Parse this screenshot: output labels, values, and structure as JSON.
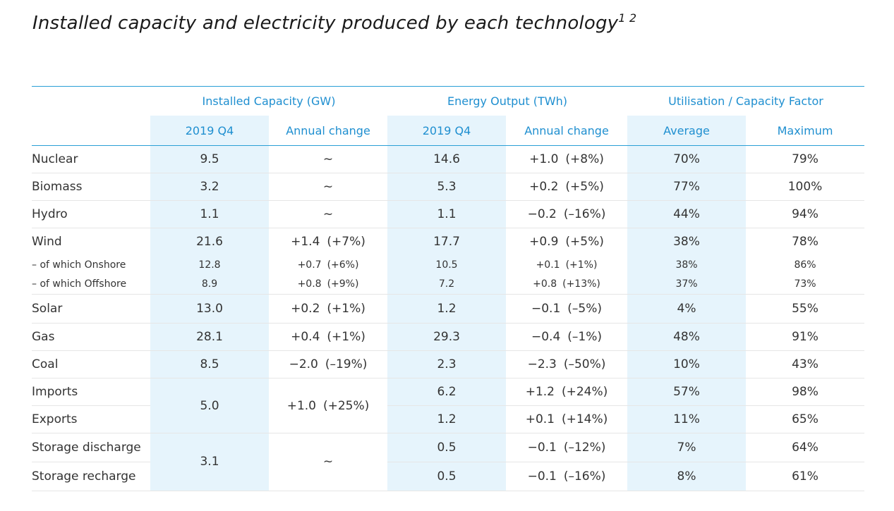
{
  "title": {
    "text": "Installed capacity and electricity produced by each technology",
    "footnotes": "1 2"
  },
  "chart_data": {
    "type": "table",
    "groups": [
      {
        "label": "Installed Capacity (GW)",
        "columns": [
          "2019 Q4",
          "Annual change"
        ]
      },
      {
        "label": "Energy Output (TWh)",
        "columns": [
          "2019 Q4",
          "Annual change"
        ]
      },
      {
        "label": "Utilisation / Capacity Factor",
        "columns": [
          "Average",
          "Maximum"
        ]
      }
    ],
    "rows": [
      {
        "name": "Nuclear",
        "cap": "9.5",
        "cap_chg": "~",
        "cap_chg_pct": "",
        "out": "14.6",
        "out_chg": "+1.0",
        "out_chg_pct": "(+8%)",
        "avg": "70%",
        "max": "79%"
      },
      {
        "name": "Biomass",
        "cap": "3.2",
        "cap_chg": "~",
        "cap_chg_pct": "",
        "out": "5.3",
        "out_chg": "+0.2",
        "out_chg_pct": "(+5%)",
        "avg": "77%",
        "max": "100%"
      },
      {
        "name": "Hydro",
        "cap": "1.1",
        "cap_chg": "~",
        "cap_chg_pct": "",
        "out": "1.1",
        "out_chg": "−0.2",
        "out_chg_pct": "(–16%)",
        "avg": "44%",
        "max": "94%"
      },
      {
        "name": "Wind",
        "cap": "21.6",
        "cap_chg": "+1.4",
        "cap_chg_pct": "(+7%)",
        "out": "17.7",
        "out_chg": "+0.9",
        "out_chg_pct": "(+5%)",
        "avg": "38%",
        "max": "78%"
      },
      {
        "name": "– of which Onshore",
        "cap": "12.8",
        "cap_chg": "+0.7",
        "cap_chg_pct": "(+6%)",
        "out": "10.5",
        "out_chg": "+0.1",
        "out_chg_pct": "(+1%)",
        "avg": "38%",
        "max": "86%"
      },
      {
        "name": "– of which Offshore",
        "cap": "8.9",
        "cap_chg": "+0.8",
        "cap_chg_pct": "(+9%)",
        "out": "7.2",
        "out_chg": "+0.8",
        "out_chg_pct": "(+13%)",
        "avg": "37%",
        "max": "73%"
      },
      {
        "name": "Solar",
        "cap": "13.0",
        "cap_chg": "+0.2",
        "cap_chg_pct": "(+1%)",
        "out": "1.2",
        "out_chg": "−0.1",
        "out_chg_pct": "(–5%)",
        "avg": "4%",
        "max": "55%"
      },
      {
        "name": "Gas",
        "cap": "28.1",
        "cap_chg": "+0.4",
        "cap_chg_pct": "(+1%)",
        "out": "29.3",
        "out_chg": "−0.4",
        "out_chg_pct": "(–1%)",
        "avg": "48%",
        "max": "91%"
      },
      {
        "name": "Coal",
        "cap": "8.5",
        "cap_chg": "−2.0",
        "cap_chg_pct": "(–19%)",
        "out": "2.3",
        "out_chg": "−2.3",
        "out_chg_pct": "(–50%)",
        "avg": "10%",
        "max": "43%"
      },
      {
        "name": "Imports",
        "out": "6.2",
        "out_chg": "+1.2",
        "out_chg_pct": "(+24%)",
        "avg": "57%",
        "max": "98%"
      },
      {
        "name": "Exports",
        "out": "1.2",
        "out_chg": "+0.1",
        "out_chg_pct": "(+14%)",
        "avg": "11%",
        "max": "65%"
      },
      {
        "name": "Storage discharge",
        "out": "0.5",
        "out_chg": "−0.1",
        "out_chg_pct": "(–12%)",
        "avg": "7%",
        "max": "64%"
      },
      {
        "name": "Storage recharge",
        "out": "0.5",
        "out_chg": "−0.1",
        "out_chg_pct": "(–16%)",
        "avg": "8%",
        "max": "61%"
      }
    ],
    "merged": {
      "interconnectors": {
        "cap": "5.0",
        "cap_chg": "+1.0",
        "cap_chg_pct": "(+25%)"
      },
      "storage": {
        "cap": "3.1",
        "cap_chg": "~"
      }
    }
  },
  "colors": {
    "accent": "#1f8fd0",
    "rule": "#2a9fd6",
    "shade": "#e6f4fc"
  }
}
